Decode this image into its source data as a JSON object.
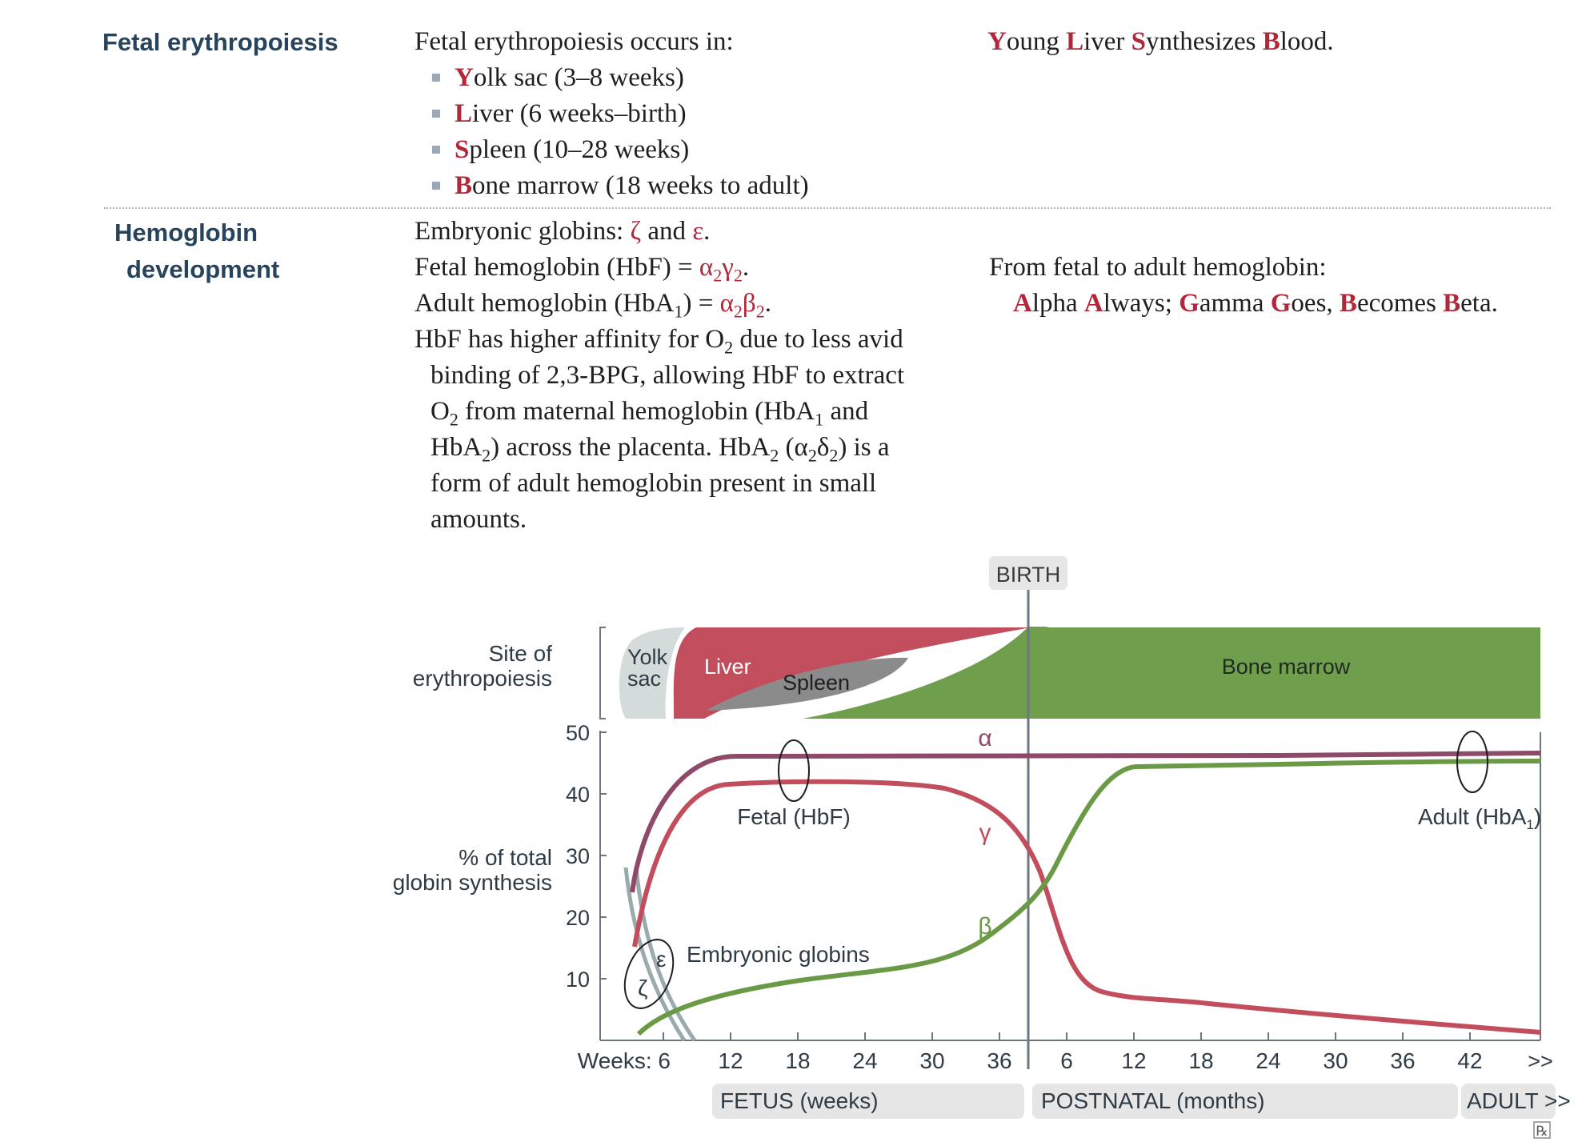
{
  "fetal": {
    "title": "Fetal erythropoiesis",
    "intro": "Fetal erythropoiesis occurs in:",
    "sites": [
      {
        "initial": "Y",
        "rest": "olk sac (3–8 weeks)"
      },
      {
        "initial": "L",
        "rest": "iver (6 weeks–birth)"
      },
      {
        "initial": "S",
        "rest": "pleen (10–28 weeks)"
      },
      {
        "initial": "B",
        "rest": "one marrow (18 weeks to adult)"
      }
    ],
    "mnemonic": [
      {
        "initial": "Y",
        "rest": "oung "
      },
      {
        "initial": "L",
        "rest": "iver "
      },
      {
        "initial": "S",
        "rest": "ynthesizes "
      },
      {
        "initial": "B",
        "rest": "lood."
      }
    ]
  },
  "hemoglobin": {
    "title_line1": "Hemoglobin",
    "title_line2": "development",
    "embryonic_prefix": "Embryonic globins: ",
    "zeta": "ζ",
    "and": " and ",
    "epsilon": "ε",
    "period": ".",
    "fetal_prefix": "Fetal hemoglobin (HbF) = ",
    "adult_prefix": "Adult hemoglobin (HbA",
    "adult_mid": ") = ",
    "alpha": "α",
    "gamma": "γ",
    "beta": "β",
    "delta": "δ",
    "sub2": "2",
    "sub1": "1",
    "affinity_l1a": "HbF has higher affinity for O",
    "affinity_l1b": " due to less avid",
    "affinity_l2": "binding of 2,3-BPG, allowing HbF to extract",
    "affinity_l3a": "O",
    "affinity_l3b": " from maternal hemoglobin (HbA",
    "affinity_l3c": " and",
    "affinity_l4a": "HbA",
    "affinity_l4b": ") across the placenta. HbA",
    "affinity_l4c": " (α",
    "affinity_l4d": "δ",
    "affinity_l4e": ") is a",
    "affinity_l5": "form of adult hemoglobin present in small",
    "affinity_l6": "amounts.",
    "mnemonic_intro": "From fetal to adult hemoglobin:",
    "mnemonic": [
      {
        "initial": "A",
        "rest": "lpha "
      },
      {
        "initial": "A",
        "rest": "lways; "
      },
      {
        "initial": "G",
        "rest": "amma "
      },
      {
        "initial": "G",
        "rest": "oes, "
      },
      {
        "initial": "B",
        "rest": "ecomes "
      },
      {
        "initial": "B",
        "rest": "eta."
      }
    ]
  },
  "figure": {
    "birth_label": "BIRTH",
    "site_label_l1": "Site of",
    "site_label_l2": "erythropoiesis",
    "yolk_l1": "Yolk",
    "yolk_l2": "sac",
    "liver": "Liver",
    "spleen": "Spleen",
    "bone_marrow": "Bone marrow",
    "ylabel_l1": "% of total",
    "ylabel_l2": "globin synthesis",
    "y_ticks": [
      "50",
      "40",
      "30",
      "20",
      "10"
    ],
    "x_prefix": "Weeks: 6",
    "x_fetal_ticks": [
      "12",
      "18",
      "24",
      "30",
      "36"
    ],
    "x_postnatal_ticks": [
      "6",
      "12",
      "18",
      "24",
      "30",
      "36",
      "42",
      ">>"
    ],
    "band_fetus": "FETUS (weeks)",
    "band_postnatal": "POSTNATAL (months)",
    "band_adult": "ADULT >>",
    "label_alpha": "α",
    "label_gamma": "γ",
    "label_beta": "β",
    "label_fetal": "Fetal (HbF)",
    "label_adult": "Adult (HbA",
    "label_adult_sub": "1",
    "label_adult_end": ")",
    "label_embryonic": "Embryonic globins",
    "label_zeta": "ζ",
    "label_epsilon": "ε",
    "rx_mark": "℞",
    "colors": {
      "alpha": "#8e4a68",
      "gamma": "#c24d5c",
      "beta": "#6a9a46",
      "embryonic": "#9aabad",
      "liver": "#c24d5c",
      "spleen": "#8b8b8b",
      "marrow": "#6f9f4c",
      "yolk": "#d3dcda",
      "band": "#e6e6e6"
    }
  }
}
